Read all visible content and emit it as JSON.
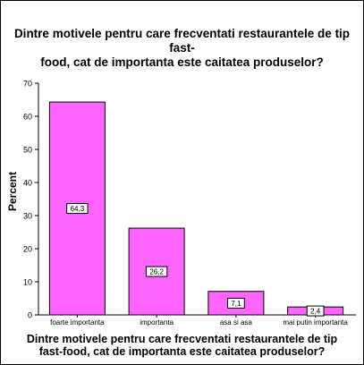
{
  "chart_data": {
    "type": "bar",
    "title": "Dintre motivele pentru care frecventati restaurantele de tip fast-\nfood, cat de importanta este caitatea produselor?",
    "xlabel": "Dintre motivele pentru care frecventati restaurantele de tip\nfast-food, cat de importanta este caitatea produselor?",
    "ylabel": "Percent",
    "categories": [
      "foarte importanta",
      "importanta",
      "asa si asa",
      "mai putin importanta"
    ],
    "values": [
      64.3,
      26.2,
      7.1,
      2.4
    ],
    "data_labels": [
      "64,3",
      "26,2",
      "7,1",
      "2,4"
    ],
    "yticks": [
      "0",
      "10",
      "20",
      "30",
      "40",
      "50",
      "60",
      "70"
    ],
    "ylim": [
      0,
      70
    ],
    "bar_color": "#ff66ff",
    "grid": false
  }
}
